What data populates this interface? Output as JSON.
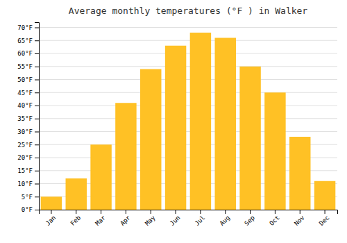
{
  "chart_data": {
    "type": "bar",
    "title": "Average monthly temperatures (°F ) in Walker",
    "categories": [
      "Jan",
      "Feb",
      "Mar",
      "Apr",
      "May",
      "Jun",
      "Jul",
      "Aug",
      "Sep",
      "Oct",
      "Nov",
      "Dec"
    ],
    "values": [
      5,
      12,
      25,
      41,
      54,
      63,
      68,
      66,
      55,
      45,
      28,
      11
    ],
    "color": "#FFC125",
    "ylim": [
      0,
      72
    ],
    "yticks": [
      {
        "value": 0,
        "label": "0°F"
      },
      {
        "value": 5,
        "label": "5°F"
      },
      {
        "value": 10,
        "label": "10°F"
      },
      {
        "value": 15,
        "label": "15°F"
      },
      {
        "value": 20,
        "label": "20°F"
      },
      {
        "value": 25,
        "label": "25°F"
      },
      {
        "value": 30,
        "label": "30°F"
      },
      {
        "value": 35,
        "label": "35°F"
      },
      {
        "value": 40,
        "label": "40°F"
      },
      {
        "value": 45,
        "label": "45°F"
      },
      {
        "value": 50,
        "label": "50°F"
      },
      {
        "value": 55,
        "label": "55°F"
      },
      {
        "value": 60,
        "label": "60°F"
      },
      {
        "value": 65,
        "label": "65°F"
      },
      {
        "value": 70,
        "label": "70°F"
      }
    ],
    "grid": true
  }
}
